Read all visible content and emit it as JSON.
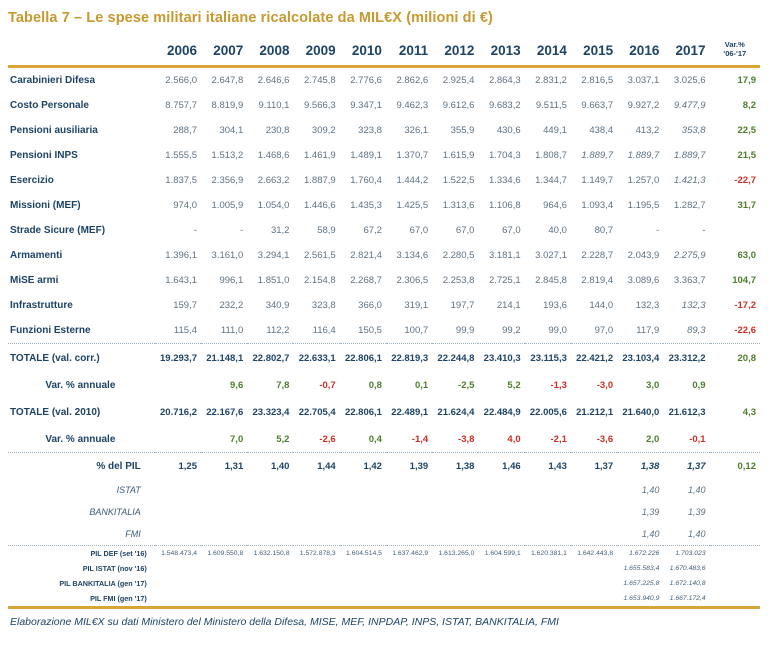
{
  "title": "Tabella 7 – Le spese militari italiane ricalcolate da MIL€X (milioni di €)",
  "footer": "Elaborazione MIL€X su dati Ministero del Ministero della Difesa, MISE, MEF, INPDAP, INPS, ISTAT, BANKITALIA, FMI",
  "colors": {
    "title_gold": "#c7992f",
    "rule_gold": "#d8a435",
    "header_navy": "#1d4365",
    "value_slate": "#5d7284",
    "positive_green": "#4e7d2c",
    "negative_red": "#d02e24"
  },
  "header": {
    "years": [
      "2006",
      "2007",
      "2008",
      "2009",
      "2010",
      "2011",
      "2012",
      "2013",
      "2014",
      "2015",
      "2016",
      "2017"
    ],
    "var_label": "Var.%",
    "var_sublabel": "'06-'17"
  },
  "chart_data": {
    "type": "table",
    "title": "Tabella 7 – Le spese militari italiane ricalcolate da MIL€X (milioni di €)",
    "columns": [
      "Voce",
      "2006",
      "2007",
      "2008",
      "2009",
      "2010",
      "2011",
      "2012",
      "2013",
      "2014",
      "2015",
      "2016",
      "2017",
      "Var.% '06-'17"
    ]
  },
  "rows": [
    {
      "type": "data",
      "label": "Carabinieri Difesa",
      "values": [
        "2.566,0",
        "2.647,8",
        "2.646,6",
        "2.745,8",
        "2.776,6",
        "2.862,6",
        "2.925,4",
        "2.864,3",
        "2.831,2",
        "2.816,5",
        "3.037,1",
        "3.025,6"
      ],
      "var": "17,9",
      "var_color": "green",
      "italics": []
    },
    {
      "type": "data",
      "label": "Costo Personale",
      "values": [
        "8.757,7",
        "8.819,9",
        "9.110,1",
        "9.566,3",
        "9.347,1",
        "9.462,3",
        "9.612,6",
        "9.683,2",
        "9.511,5",
        "9.663,7",
        "9.927,2",
        "9.477,9"
      ],
      "var": "8,2",
      "var_color": "green",
      "italics": [
        11
      ]
    },
    {
      "type": "data",
      "label": "Pensioni ausiliaria",
      "values": [
        "288,7",
        "304,1",
        "230,8",
        "309,2",
        "323,8",
        "326,1",
        "355,9",
        "430,6",
        "449,1",
        "438,4",
        "413,2",
        "353,8"
      ],
      "var": "22,5",
      "var_color": "green",
      "italics": [
        11
      ]
    },
    {
      "type": "data",
      "label": "Pensioni INPS",
      "values": [
        "1.555,5",
        "1.513,2",
        "1.468,6",
        "1.461,9",
        "1.489,1",
        "1.370,7",
        "1.615,9",
        "1.704,3",
        "1.808,7",
        "1.889,7",
        "1.889,7",
        "1.889,7"
      ],
      "var": "21,5",
      "var_color": "green",
      "italics": [
        9,
        10,
        11
      ]
    },
    {
      "type": "data",
      "label": "Esercizio",
      "values": [
        "1.837,5",
        "2.356,9",
        "2.663,2",
        "1.887,9",
        "1.760,4",
        "1.444,2",
        "1.522,5",
        "1.334,6",
        "1.344,7",
        "1.149,7",
        "1.257,0",
        "1.421,3"
      ],
      "var": "-22,7",
      "var_color": "red",
      "italics": [
        11
      ]
    },
    {
      "type": "data",
      "label": "Missioni (MEF)",
      "values": [
        "974,0",
        "1.005,9",
        "1.054,0",
        "1.446,6",
        "1.435,3",
        "1.425,5",
        "1.313,6",
        "1.106,8",
        "964,6",
        "1.093,4",
        "1.195,5",
        "1.282,7"
      ],
      "var": "31,7",
      "var_color": "green",
      "italics": []
    },
    {
      "type": "data",
      "label": "Strade Sicure (MEF)",
      "values": [
        "-",
        "-",
        "31,2",
        "58,9",
        "67,2",
        "67,0",
        "67,0",
        "67,0",
        "40,0",
        "80,7",
        "-",
        "-"
      ],
      "var": "",
      "var_color": "",
      "italics": []
    },
    {
      "type": "data",
      "label": "Armamenti",
      "values": [
        "1.396,1",
        "3.161,0",
        "3.294,1",
        "2.561,5",
        "2.821,4",
        "3.134,6",
        "2.280,5",
        "3.181,1",
        "3.027,1",
        "2.228,7",
        "2.043,9",
        "2.275,9"
      ],
      "var": "63,0",
      "var_color": "green",
      "italics": [
        11
      ]
    },
    {
      "type": "data",
      "label": "MiSE armi",
      "values": [
        "1.643,1",
        "996,1",
        "1.851,0",
        "2.154,8",
        "2.268,7",
        "2.306,5",
        "2.253,8",
        "2.725,1",
        "2.845,8",
        "2.819,4",
        "3.089,6",
        "3.363,7"
      ],
      "var": "104,7",
      "var_color": "green",
      "italics": []
    },
    {
      "type": "data",
      "label": "Infrastrutture",
      "values": [
        "159,7",
        "232,2",
        "340,9",
        "323,8",
        "366,0",
        "319,1",
        "197,7",
        "214,1",
        "193,6",
        "144,0",
        "132,3",
        "132,3"
      ],
      "var": "-17,2",
      "var_color": "red",
      "italics": [
        11
      ]
    },
    {
      "type": "data",
      "label": "Funzioni Esterne",
      "values": [
        "115,4",
        "111,0",
        "112,2",
        "116,4",
        "150,5",
        "100,7",
        "99,9",
        "99,2",
        "99,0",
        "97,0",
        "117,9",
        "89,3"
      ],
      "var": "-22,6",
      "var_color": "red",
      "italics": [
        11
      ]
    },
    {
      "type": "total",
      "sep_before": true,
      "label": "TOTALE  (val. corr.)",
      "values": [
        "19.293,7",
        "21.148,1",
        "22.802,7",
        "22.633,1",
        "22.806,1",
        "22.819,3",
        "22.244,8",
        "23.410,3",
        "23.115,3",
        "22.421,2",
        "23.103,4",
        "23.312,2"
      ],
      "var": "20,8",
      "var_color": "green",
      "italics": []
    },
    {
      "type": "var",
      "label": "Var. % annuale",
      "values": [
        "",
        "9,6",
        "7,8",
        "-0,7",
        "0,8",
        "0,1",
        "-2,5",
        "5,2",
        "-1,3",
        "-3,0",
        "3,0",
        "0,9"
      ],
      "value_colors": [
        "",
        "green",
        "green",
        "red",
        "green",
        "green",
        "green",
        "green",
        "red",
        "red",
        "green",
        "green"
      ],
      "var": "",
      "var_color": "",
      "italics": []
    },
    {
      "type": "total",
      "label": "TOTALE  (val. 2010)",
      "values": [
        "20.716,2",
        "22.167,6",
        "23.323,4",
        "22.705,4",
        "22.806,1",
        "22.489,1",
        "21.624,4",
        "22.484,9",
        "22.005,6",
        "21.212,1",
        "21.640,0",
        "21.612,3"
      ],
      "var": "4,3",
      "var_color": "green",
      "italics": []
    },
    {
      "type": "var",
      "label": "Var. % annuale",
      "values": [
        "",
        "7,0",
        "5,2",
        "-2,6",
        "0,4",
        "-1,4",
        "-3,8",
        "4,0",
        "-2,1",
        "-3,6",
        "2,0",
        "-0,1"
      ],
      "value_colors": [
        "",
        "green",
        "green",
        "red",
        "green",
        "red",
        "red",
        "red",
        "red",
        "red",
        "green",
        "red"
      ],
      "var": "",
      "var_color": "",
      "italics": []
    },
    {
      "type": "pct",
      "sep_before": true,
      "label": "% del PIL",
      "values": [
        "1,25",
        "1,31",
        "1,40",
        "1,44",
        "1,42",
        "1,39",
        "1,38",
        "1,46",
        "1,43",
        "1,37",
        "1,38",
        "1,37"
      ],
      "var": "0,12",
      "var_color": "green",
      "italics": [
        10,
        11
      ]
    },
    {
      "type": "sub",
      "label": "ISTAT",
      "values": [
        "",
        "",
        "",
        "",
        "",
        "",
        "",
        "",
        "",
        "",
        "1,40",
        "1,40"
      ],
      "var": "",
      "var_color": "",
      "italics": [
        10,
        11
      ]
    },
    {
      "type": "sub",
      "label": "BANKITALIA",
      "values": [
        "",
        "",
        "",
        "",
        "",
        "",
        "",
        "",
        "",
        "",
        "1,39",
        "1,39"
      ],
      "var": "",
      "var_color": "",
      "italics": [
        10,
        11
      ]
    },
    {
      "type": "sub",
      "label": "FMI",
      "values": [
        "",
        "",
        "",
        "",
        "",
        "",
        "",
        "",
        "",
        "",
        "1,40",
        "1,40"
      ],
      "var": "",
      "var_color": "",
      "italics": [
        10,
        11
      ]
    },
    {
      "type": "pil",
      "sep_before": true,
      "label": "PIL DEF (set '16)",
      "values": [
        "1.548.473,4",
        "1.609.550,8",
        "1.632.150,8",
        "1.572.878,3",
        "1.604.514,5",
        "1.637.462,9",
        "1.613.265,0",
        "1.604.599,1",
        "1.620.381,1",
        "1.642.443,8",
        "1.672.226",
        "1.703.023"
      ],
      "var": "",
      "var_color": "",
      "italics": [
        10,
        11
      ]
    },
    {
      "type": "pil",
      "label": "PIL ISTAT (nov '16)",
      "values": [
        "",
        "",
        "",
        "",
        "",
        "",
        "",
        "",
        "",
        "",
        "1.655.583,4",
        "1.670.483,6"
      ],
      "var": "",
      "var_color": "",
      "italics": [
        10,
        11
      ]
    },
    {
      "type": "pil",
      "label": "PIL BANKITALIA (gen '17)",
      "values": [
        "",
        "",
        "",
        "",
        "",
        "",
        "",
        "",
        "",
        "",
        "1.657.225,8",
        "1.672.140,8"
      ],
      "var": "",
      "var_color": "",
      "italics": [
        10,
        11
      ]
    },
    {
      "type": "pil",
      "label": "PIL FMI (gen '17)",
      "values": [
        "",
        "",
        "",
        "",
        "",
        "",
        "",
        "",
        "",
        "",
        "1.653.940,9",
        "1.667.172,4"
      ],
      "var": "",
      "var_color": "",
      "italics": [
        10,
        11
      ]
    }
  ]
}
